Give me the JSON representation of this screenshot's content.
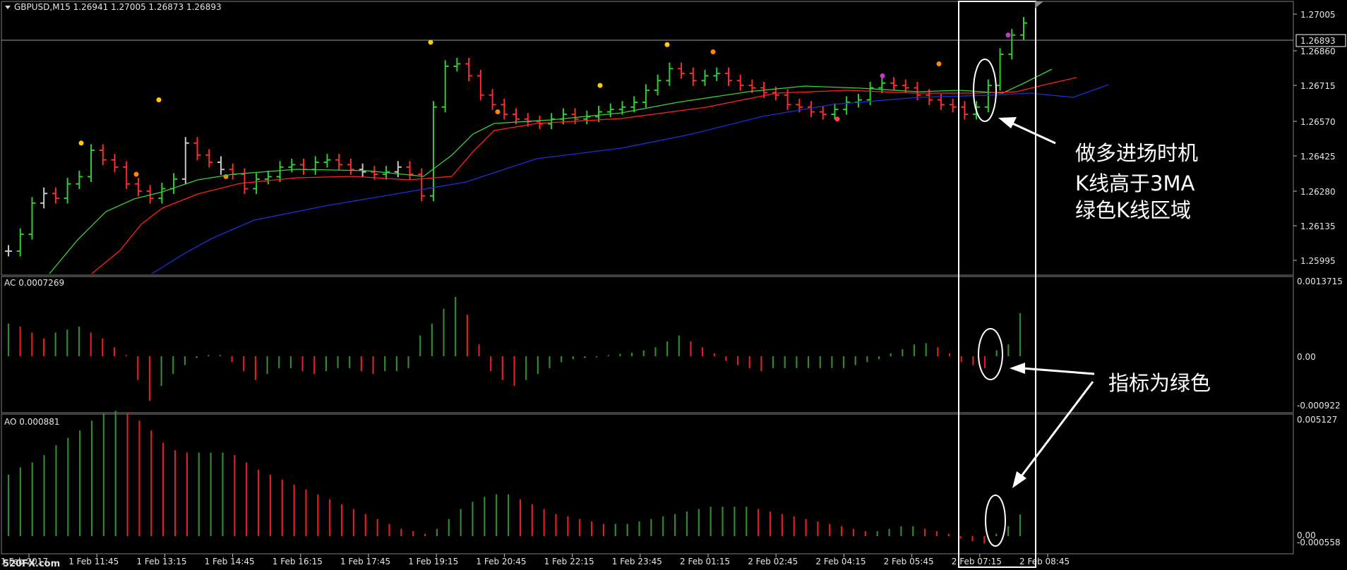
{
  "header": {
    "title": "GBPUSD,M15  1.26941 1.27005 1.26873 1.26893"
  },
  "price_axis": {
    "ticks": [
      "1.27005",
      "1.26860",
      "1.26715",
      "1.26570",
      "1.26425",
      "1.26280",
      "1.26135",
      "1.25995"
    ],
    "current_price": "1.26893"
  },
  "ac_panel": {
    "label": "AC 0.0007269",
    "ticks": [
      "0.0013715",
      "0.00",
      "-0.000922"
    ]
  },
  "ao_panel": {
    "label": "AO 0.000881",
    "ticks": [
      "0.005127",
      "0.00",
      "-0.000558"
    ]
  },
  "time_axis": {
    "labels": [
      "1 Feb 2017",
      "1 Feb 11:45",
      "1 Feb 13:15",
      "1 Feb 14:45",
      "1 Feb 16:15",
      "1 Feb 17:45",
      "1 Feb 19:15",
      "1 Feb 20:45",
      "1 Feb 22:15",
      "1 Feb 23:45",
      "2 Feb 01:15",
      "2 Feb 02:45",
      "2 Feb 04:15",
      "2 Feb 05:45",
      "2 Feb 07:15",
      "2 Feb 08:45"
    ]
  },
  "annotations": {
    "entry_line1": "做多进场时机",
    "entry_line2": "K线高于3MA",
    "entry_line3": "绿色K线区域",
    "indicator_note": "指标为绿色"
  },
  "watermark": "520FX.com",
  "colors": {
    "bull": "#32cd32",
    "bear": "#ff2a2a",
    "neutral": "#c8c8c8",
    "ma_fast": "#3ad13a",
    "ma_mid": "#ff2020",
    "ma_slow": "#1f2fd6",
    "ac_up": "#2e8b2e",
    "ac_down": "#e02020",
    "grid": "#808080"
  },
  "chart_data": [
    {
      "type": "bar",
      "title": "GBPUSD,M15",
      "series": [
        {
          "name": "GBPUSD",
          "values_ohlc_last": [
            1.26941,
            1.27005,
            1.26873,
            1.26893
          ]
        }
      ],
      "ylim": [
        1.2593,
        1.2707
      ],
      "x": [
        "1 Feb 2017",
        "1 Feb 11:45",
        "1 Feb 13:15",
        "1 Feb 14:45",
        "1 Feb 16:15",
        "1 Feb 17:45",
        "1 Feb 19:15",
        "1 Feb 20:45",
        "1 Feb 22:15",
        "1 Feb 23:45",
        "2 Feb 01:15",
        "2 Feb 02:45",
        "2 Feb 04:15",
        "2 Feb 05:45",
        "2 Feb 07:15",
        "2 Feb 08:45"
      ]
    },
    {
      "type": "bar",
      "title": "AC 0.0007269",
      "ylim": [
        -0.000922,
        0.0013715
      ],
      "values": [
        0.00055,
        0.0005,
        0.0004,
        0.0003,
        0.0004,
        0.00045,
        0.0005,
        0.0004,
        0.0003,
        0.00015,
        2e-05,
        -0.0004,
        -0.00075,
        -0.0005,
        -0.0003,
        -0.00015,
        -3e-05,
        2e-05,
        2e-05,
        -0.0001,
        -0.00025,
        -0.0004,
        -0.0003,
        -0.0002,
        -0.0002,
        -0.00025,
        -0.0003,
        -0.00025,
        -0.0002,
        -0.0002,
        -0.00025,
        -0.0003,
        -0.00025,
        -0.00025,
        -0.0002,
        0.00035,
        0.00055,
        0.0008,
        0.001,
        0.0007,
        0.0002,
        -0.00025,
        -0.0004,
        -0.0005,
        -0.0004,
        -0.0003,
        -0.0002,
        -0.0001,
        -5e-05,
        -3e-05,
        -2e-05,
        2e-05,
        4e-05,
        6e-05,
        0.0001,
        0.00015,
        0.00025,
        0.00035,
        0.00025,
        0.00015,
        5e-05,
        -8e-05,
        -0.00015,
        -0.0002,
        -0.00025,
        -0.0002,
        -0.0002,
        -0.0002,
        -0.0002,
        -0.0002,
        -0.0002,
        -0.0002,
        -0.00015,
        -0.0001,
        -5e-05,
        5e-05,
        0.00012,
        0.0002,
        0.00022,
        0.00015,
        5e-05,
        -0.0001,
        -0.00015,
        -0.0002,
        0.0001,
        0.0002,
        0.0007269
      ]
    },
    {
      "type": "bar",
      "title": "AO 0.000881",
      "ylim": [
        -0.000558,
        0.005127
      ],
      "values": [
        0.0025,
        0.0028,
        0.003,
        0.0033,
        0.0037,
        0.004,
        0.0043,
        0.0047,
        0.005,
        0.0051,
        0.005,
        0.0047,
        0.0043,
        0.0038,
        0.0035,
        0.0034,
        0.0034,
        0.0034,
        0.0034,
        0.0033,
        0.003,
        0.0027,
        0.0025,
        0.0023,
        0.0021,
        0.0019,
        0.0017,
        0.0015,
        0.0013,
        0.0011,
        0.0009,
        0.0007,
        0.0005,
        0.0003,
        0.0002,
        0.0001,
        0.0003,
        0.0007,
        0.0011,
        0.0014,
        0.0016,
        0.0017,
        0.0017,
        0.0015,
        0.0013,
        0.0011,
        0.0009,
        0.0008,
        0.0007,
        0.0006,
        0.0005,
        0.0005,
        0.0005,
        0.0006,
        0.0007,
        0.0008,
        0.0009,
        0.001,
        0.0011,
        0.0012,
        0.0012,
        0.0012,
        0.0012,
        0.0011,
        0.001,
        0.0009,
        0.0008,
        0.0007,
        0.0006,
        0.0005,
        0.0004,
        0.0003,
        0.0002,
        0.0002,
        0.0003,
        0.0004,
        0.0004,
        0.0003,
        0.0002,
        0.0001,
        -0.0001,
        -0.0002,
        -0.0003,
        0.0001,
        0.0004,
        0.000881
      ]
    }
  ]
}
